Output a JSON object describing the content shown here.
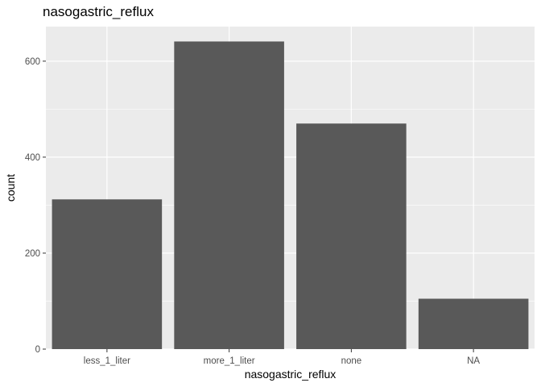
{
  "chart_data": {
    "type": "bar",
    "title": "nasogastric_reflux",
    "xlabel": "nasogastric_reflux",
    "ylabel": "count",
    "categories": [
      "less_1_liter",
      "more_1_liter",
      "none",
      "NA"
    ],
    "values": [
      312,
      641,
      470,
      105
    ],
    "ylim": [
      0,
      672
    ],
    "yticks": [
      0,
      200,
      400,
      600
    ],
    "grid": true,
    "bar_color": "#595959",
    "panel_color": "#ebebeb",
    "grid_color": "#ffffff"
  }
}
